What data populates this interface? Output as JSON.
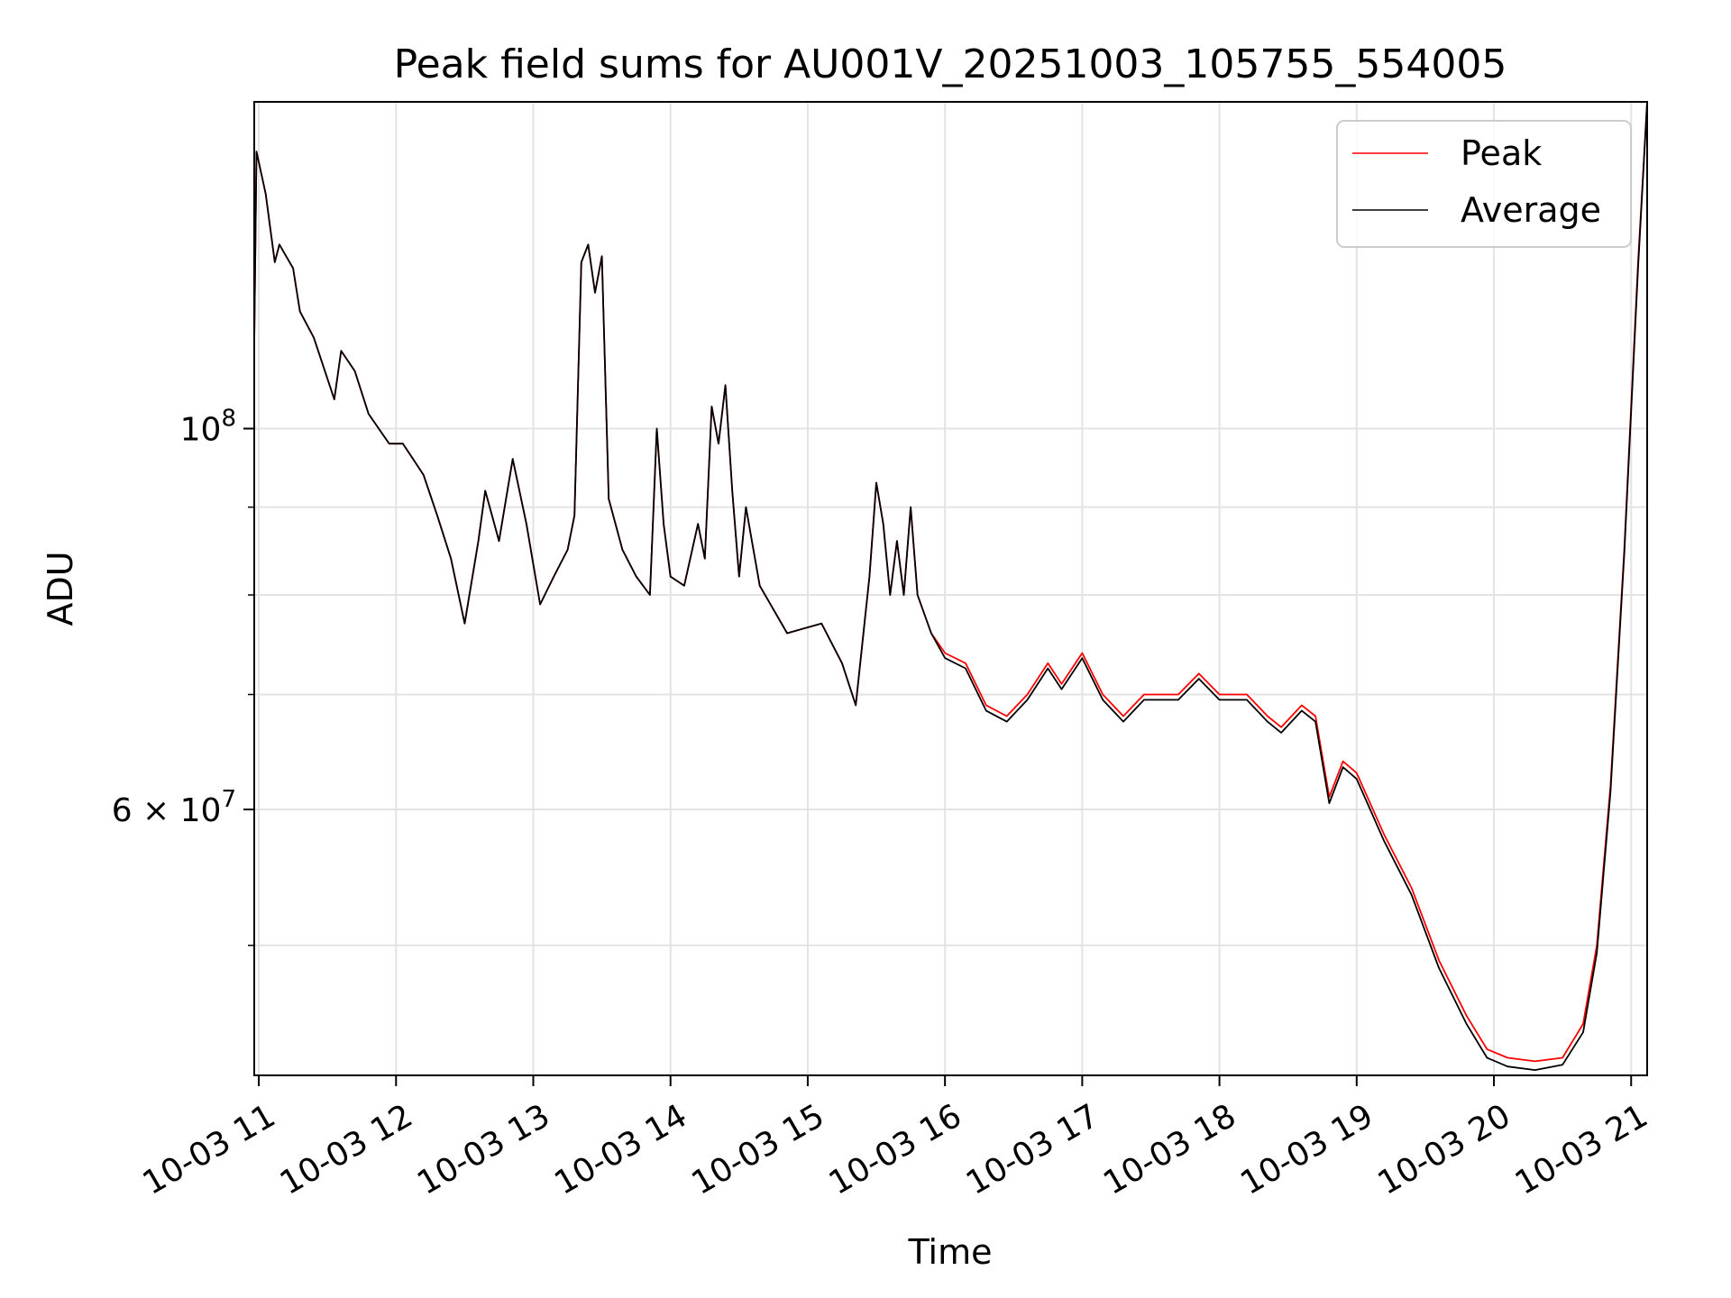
{
  "chart_data": {
    "type": "line",
    "title": "Peak field sums for AU001V_20251003_105755_554005",
    "xlabel": "Time",
    "ylabel": "ADU",
    "x_scale": "time",
    "y_scale": "log",
    "x_range": [
      "2025-10-03 10:58",
      "2025-10-03 21:07"
    ],
    "y_range": [
      42000000,
      155000000
    ],
    "grid": true,
    "legend_position": "top-right",
    "x_tick_labels": [
      "10-03 11",
      "10-03 12",
      "10-03 13",
      "10-03 14",
      "10-03 15",
      "10-03 16",
      "10-03 17",
      "10-03 18",
      "10-03 19",
      "10-03 20",
      "10-03 21"
    ],
    "x_tick_times": [
      "2025-10-03 11:00",
      "2025-10-03 12:00",
      "2025-10-03 13:00",
      "2025-10-03 14:00",
      "2025-10-03 15:00",
      "2025-10-03 16:00",
      "2025-10-03 17:00",
      "2025-10-03 18:00",
      "2025-10-03 19:00",
      "2025-10-03 20:00",
      "2025-10-03 21:00"
    ],
    "y_major_ticks": [
      {
        "value": 100000000,
        "label_base": "10",
        "label_sup": "8"
      },
      {
        "value": 60000000,
        "label_base": "6 × 10",
        "label_sup": "7"
      }
    ],
    "y_minor_ticks": [
      50000000,
      70000000,
      80000000,
      90000000
    ],
    "series": [
      {
        "name": "Peak",
        "color": "#ff0000",
        "points": [
          [
            "2025-10-03 10:58",
            112000000
          ],
          [
            "2025-10-03 10:59",
            145000000
          ],
          [
            "2025-10-03 11:03",
            137000000
          ],
          [
            "2025-10-03 11:07",
            125000000
          ],
          [
            "2025-10-03 11:09",
            128000000
          ],
          [
            "2025-10-03 11:15",
            124000000
          ],
          [
            "2025-10-03 11:18",
            117000000
          ],
          [
            "2025-10-03 11:24",
            113000000
          ],
          [
            "2025-10-03 11:33",
            104000000
          ],
          [
            "2025-10-03 11:36",
            111000000
          ],
          [
            "2025-10-03 11:42",
            108000000
          ],
          [
            "2025-10-03 11:48",
            102000000
          ],
          [
            "2025-10-03 11:57",
            98000000
          ],
          [
            "2025-10-03 12:03",
            98000000
          ],
          [
            "2025-10-03 12:12",
            94000000
          ],
          [
            "2025-10-03 12:18",
            89000000
          ],
          [
            "2025-10-03 12:24",
            84000000
          ],
          [
            "2025-10-03 12:30",
            77000000
          ],
          [
            "2025-10-03 12:36",
            86000000
          ],
          [
            "2025-10-03 12:39",
            92000000
          ],
          [
            "2025-10-03 12:45",
            86000000
          ],
          [
            "2025-10-03 12:51",
            96000000
          ],
          [
            "2025-10-03 12:57",
            88000000
          ],
          [
            "2025-10-03 13:03",
            79000000
          ],
          [
            "2025-10-03 13:09",
            82000000
          ],
          [
            "2025-10-03 13:15",
            85000000
          ],
          [
            "2025-10-03 13:18",
            89000000
          ],
          [
            "2025-10-03 13:21",
            125000000
          ],
          [
            "2025-10-03 13:24",
            128000000
          ],
          [
            "2025-10-03 13:27",
            120000000
          ],
          [
            "2025-10-03 13:30",
            126000000
          ],
          [
            "2025-10-03 13:33",
            91000000
          ],
          [
            "2025-10-03 13:39",
            85000000
          ],
          [
            "2025-10-03 13:45",
            82000000
          ],
          [
            "2025-10-03 13:51",
            80000000
          ],
          [
            "2025-10-03 13:54",
            100000000
          ],
          [
            "2025-10-03 13:57",
            88000000
          ],
          [
            "2025-10-03 14:00",
            82000000
          ],
          [
            "2025-10-03 14:06",
            81000000
          ],
          [
            "2025-10-03 14:12",
            88000000
          ],
          [
            "2025-10-03 14:15",
            84000000
          ],
          [
            "2025-10-03 14:18",
            103000000
          ],
          [
            "2025-10-03 14:21",
            98000000
          ],
          [
            "2025-10-03 14:24",
            106000000
          ],
          [
            "2025-10-03 14:27",
            92000000
          ],
          [
            "2025-10-03 14:30",
            82000000
          ],
          [
            "2025-10-03 14:33",
            90000000
          ],
          [
            "2025-10-03 14:39",
            81000000
          ],
          [
            "2025-10-03 14:51",
            76000000
          ],
          [
            "2025-10-03 15:06",
            77000000
          ],
          [
            "2025-10-03 15:15",
            73000000
          ],
          [
            "2025-10-03 15:21",
            69000000
          ],
          [
            "2025-10-03 15:27",
            82000000
          ],
          [
            "2025-10-03 15:30",
            93000000
          ],
          [
            "2025-10-03 15:33",
            88000000
          ],
          [
            "2025-10-03 15:36",
            80000000
          ],
          [
            "2025-10-03 15:39",
            86000000
          ],
          [
            "2025-10-03 15:42",
            80000000
          ],
          [
            "2025-10-03 15:45",
            90000000
          ],
          [
            "2025-10-03 15:48",
            80000000
          ],
          [
            "2025-10-03 15:54",
            76000000
          ],
          [
            "2025-10-03 16:00",
            74000000
          ],
          [
            "2025-10-03 16:09",
            73000000
          ],
          [
            "2025-10-03 16:18",
            69000000
          ],
          [
            "2025-10-03 16:27",
            68000000
          ],
          [
            "2025-10-03 16:36",
            70000000
          ],
          [
            "2025-10-03 16:45",
            73000000
          ],
          [
            "2025-10-03 16:51",
            71000000
          ],
          [
            "2025-10-03 17:00",
            74000000
          ],
          [
            "2025-10-03 17:09",
            70000000
          ],
          [
            "2025-10-03 17:18",
            68000000
          ],
          [
            "2025-10-03 17:27",
            70000000
          ],
          [
            "2025-10-03 17:42",
            70000000
          ],
          [
            "2025-10-03 17:51",
            72000000
          ],
          [
            "2025-10-03 18:00",
            70000000
          ],
          [
            "2025-10-03 18:12",
            70000000
          ],
          [
            "2025-10-03 18:21",
            68000000
          ],
          [
            "2025-10-03 18:27",
            67000000
          ],
          [
            "2025-10-03 18:36",
            69000000
          ],
          [
            "2025-10-03 18:42",
            68000000
          ],
          [
            "2025-10-03 18:48",
            61000000
          ],
          [
            "2025-10-03 18:54",
            64000000
          ],
          [
            "2025-10-03 19:00",
            63000000
          ],
          [
            "2025-10-03 19:12",
            58000000
          ],
          [
            "2025-10-03 19:24",
            54000000
          ],
          [
            "2025-10-03 19:36",
            49000000
          ],
          [
            "2025-10-03 19:48",
            45500000
          ],
          [
            "2025-10-03 19:57",
            43500000
          ],
          [
            "2025-10-03 20:06",
            43000000
          ],
          [
            "2025-10-03 20:18",
            42800000
          ],
          [
            "2025-10-03 20:30",
            43000000
          ],
          [
            "2025-10-03 20:39",
            45000000
          ],
          [
            "2025-10-03 20:45",
            50000000
          ],
          [
            "2025-10-03 20:51",
            62000000
          ],
          [
            "2025-10-03 20:57",
            85000000
          ],
          [
            "2025-10-03 21:03",
            125000000
          ],
          [
            "2025-10-03 21:07",
            155000000
          ]
        ]
      },
      {
        "name": "Average",
        "color": "#000000",
        "points": [
          [
            "2025-10-03 10:58",
            112000000
          ],
          [
            "2025-10-03 10:59",
            145000000
          ],
          [
            "2025-10-03 11:03",
            137000000
          ],
          [
            "2025-10-03 11:07",
            125000000
          ],
          [
            "2025-10-03 11:09",
            128000000
          ],
          [
            "2025-10-03 11:15",
            124000000
          ],
          [
            "2025-10-03 11:18",
            117000000
          ],
          [
            "2025-10-03 11:24",
            113000000
          ],
          [
            "2025-10-03 11:33",
            104000000
          ],
          [
            "2025-10-03 11:36",
            111000000
          ],
          [
            "2025-10-03 11:42",
            108000000
          ],
          [
            "2025-10-03 11:48",
            102000000
          ],
          [
            "2025-10-03 11:57",
            98000000
          ],
          [
            "2025-10-03 12:03",
            98000000
          ],
          [
            "2025-10-03 12:12",
            94000000
          ],
          [
            "2025-10-03 12:18",
            89000000
          ],
          [
            "2025-10-03 12:24",
            84000000
          ],
          [
            "2025-10-03 12:30",
            77000000
          ],
          [
            "2025-10-03 12:36",
            86000000
          ],
          [
            "2025-10-03 12:39",
            92000000
          ],
          [
            "2025-10-03 12:45",
            86000000
          ],
          [
            "2025-10-03 12:51",
            96000000
          ],
          [
            "2025-10-03 12:57",
            88000000
          ],
          [
            "2025-10-03 13:03",
            79000000
          ],
          [
            "2025-10-03 13:09",
            82000000
          ],
          [
            "2025-10-03 13:15",
            85000000
          ],
          [
            "2025-10-03 13:18",
            89000000
          ],
          [
            "2025-10-03 13:21",
            125000000
          ],
          [
            "2025-10-03 13:24",
            128000000
          ],
          [
            "2025-10-03 13:27",
            120000000
          ],
          [
            "2025-10-03 13:30",
            126000000
          ],
          [
            "2025-10-03 13:33",
            91000000
          ],
          [
            "2025-10-03 13:39",
            85000000
          ],
          [
            "2025-10-03 13:45",
            82000000
          ],
          [
            "2025-10-03 13:51",
            80000000
          ],
          [
            "2025-10-03 13:54",
            100000000
          ],
          [
            "2025-10-03 13:57",
            88000000
          ],
          [
            "2025-10-03 14:00",
            82000000
          ],
          [
            "2025-10-03 14:06",
            81000000
          ],
          [
            "2025-10-03 14:12",
            88000000
          ],
          [
            "2025-10-03 14:15",
            84000000
          ],
          [
            "2025-10-03 14:18",
            103000000
          ],
          [
            "2025-10-03 14:21",
            98000000
          ],
          [
            "2025-10-03 14:24",
            106000000
          ],
          [
            "2025-10-03 14:27",
            92000000
          ],
          [
            "2025-10-03 14:30",
            82000000
          ],
          [
            "2025-10-03 14:33",
            90000000
          ],
          [
            "2025-10-03 14:39",
            81000000
          ],
          [
            "2025-10-03 14:51",
            76000000
          ],
          [
            "2025-10-03 15:06",
            77000000
          ],
          [
            "2025-10-03 15:15",
            73000000
          ],
          [
            "2025-10-03 15:21",
            69000000
          ],
          [
            "2025-10-03 15:27",
            82000000
          ],
          [
            "2025-10-03 15:30",
            93000000
          ],
          [
            "2025-10-03 15:33",
            88000000
          ],
          [
            "2025-10-03 15:36",
            80000000
          ],
          [
            "2025-10-03 15:39",
            86000000
          ],
          [
            "2025-10-03 15:42",
            80000000
          ],
          [
            "2025-10-03 15:45",
            90000000
          ],
          [
            "2025-10-03 15:48",
            80000000
          ],
          [
            "2025-10-03 15:54",
            76000000
          ],
          [
            "2025-10-03 16:00",
            73500000
          ],
          [
            "2025-10-03 16:09",
            72500000
          ],
          [
            "2025-10-03 16:18",
            68500000
          ],
          [
            "2025-10-03 16:27",
            67500000
          ],
          [
            "2025-10-03 16:36",
            69500000
          ],
          [
            "2025-10-03 16:45",
            72500000
          ],
          [
            "2025-10-03 16:51",
            70500000
          ],
          [
            "2025-10-03 17:00",
            73500000
          ],
          [
            "2025-10-03 17:09",
            69500000
          ],
          [
            "2025-10-03 17:18",
            67500000
          ],
          [
            "2025-10-03 17:27",
            69500000
          ],
          [
            "2025-10-03 17:42",
            69500000
          ],
          [
            "2025-10-03 17:51",
            71500000
          ],
          [
            "2025-10-03 18:00",
            69500000
          ],
          [
            "2025-10-03 18:12",
            69500000
          ],
          [
            "2025-10-03 18:21",
            67500000
          ],
          [
            "2025-10-03 18:27",
            66500000
          ],
          [
            "2025-10-03 18:36",
            68500000
          ],
          [
            "2025-10-03 18:42",
            67500000
          ],
          [
            "2025-10-03 18:48",
            60500000
          ],
          [
            "2025-10-03 18:54",
            63500000
          ],
          [
            "2025-10-03 19:00",
            62500000
          ],
          [
            "2025-10-03 19:12",
            57500000
          ],
          [
            "2025-10-03 19:24",
            53500000
          ],
          [
            "2025-10-03 19:36",
            48500000
          ],
          [
            "2025-10-03 19:48",
            45000000
          ],
          [
            "2025-10-03 19:57",
            43000000
          ],
          [
            "2025-10-03 20:06",
            42500000
          ],
          [
            "2025-10-03 20:18",
            42300000
          ],
          [
            "2025-10-03 20:30",
            42600000
          ],
          [
            "2025-10-03 20:39",
            44500000
          ],
          [
            "2025-10-03 20:45",
            49500000
          ],
          [
            "2025-10-03 20:51",
            61500000
          ],
          [
            "2025-10-03 20:57",
            84500000
          ],
          [
            "2025-10-03 21:03",
            124000000
          ],
          [
            "2025-10-03 21:07",
            155000000
          ]
        ]
      }
    ]
  }
}
